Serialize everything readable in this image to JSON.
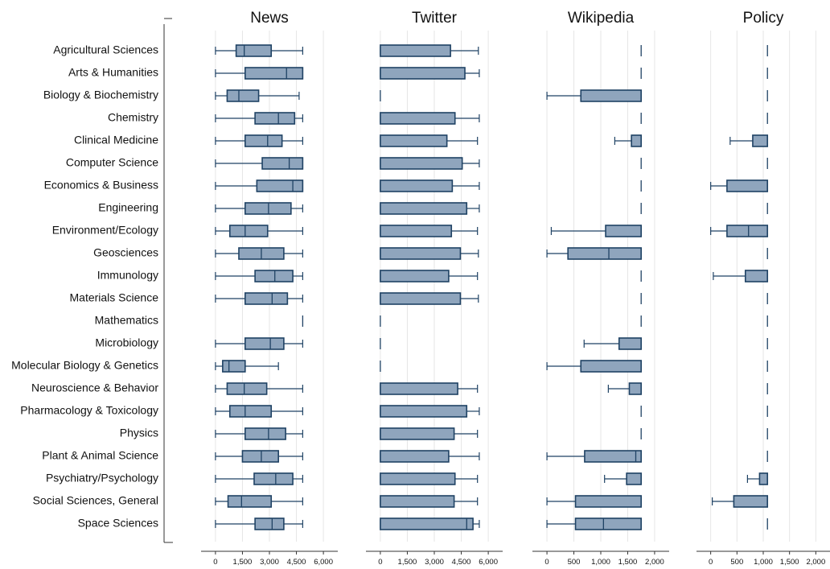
{
  "chart_data": {
    "type": "box",
    "categories": [
      "Agricultural Sciences",
      "Arts & Humanities",
      "Biology & Biochemistry",
      "Chemistry",
      "Clinical Medicine",
      "Computer Science",
      "Economics & Business",
      "Engineering",
      "Environment/Ecology",
      "Geosciences",
      "Immunology",
      "Materials Science",
      "Mathematics",
      "Microbiology",
      "Molecular Biology & Genetics",
      "Neuroscience & Behavior",
      "Pharmacology & Toxicology",
      "Physics",
      "Plant & Animal Science",
      "Psychiatry/Psychology",
      "Social Sciences, General",
      "Space Sciences"
    ],
    "style": {
      "box_fill": "#8fa5bd",
      "box_stroke": "#1f4264",
      "grid": "#e6e6e6",
      "axis": "#333333"
    },
    "panels": [
      {
        "title": "News",
        "xlim": [
          -800,
          6800
        ],
        "ticks": [
          0,
          1500,
          3000,
          4500,
          6000
        ],
        "tick_labels": [
          "0",
          "1,500",
          "3,000",
          "4,500",
          "6,000"
        ],
        "boxes": [
          [
            0,
            1150,
            1600,
            3100,
            4850
          ],
          [
            0,
            1650,
            3950,
            4850,
            4850
          ],
          [
            0,
            650,
            1300,
            2400,
            4650
          ],
          [
            0,
            2200,
            3500,
            4400,
            4850
          ],
          [
            0,
            1650,
            2900,
            3700,
            4850
          ],
          [
            0,
            2600,
            4100,
            4850,
            4850
          ],
          [
            0,
            2300,
            4300,
            4850,
            4850
          ],
          [
            0,
            1650,
            2950,
            4200,
            4850
          ],
          [
            0,
            800,
            1650,
            2900,
            4850
          ],
          [
            0,
            1300,
            2550,
            3800,
            4850
          ],
          [
            0,
            2200,
            3300,
            4300,
            4850
          ],
          [
            0,
            1650,
            3150,
            4000,
            4850
          ],
          [
            4850,
            4850,
            4850,
            4850,
            4850
          ],
          [
            0,
            1650,
            3050,
            3800,
            4850
          ],
          [
            0,
            400,
            750,
            1650,
            3500
          ],
          [
            0,
            650,
            1600,
            2850,
            4850
          ],
          [
            0,
            800,
            1650,
            3100,
            4850
          ],
          [
            0,
            1650,
            2950,
            3900,
            4850
          ],
          [
            0,
            1500,
            2550,
            3500,
            4850
          ],
          [
            0,
            2150,
            3350,
            4300,
            4850
          ],
          [
            0,
            700,
            1450,
            3100,
            4850
          ],
          [
            0,
            2200,
            3150,
            3800,
            4850
          ]
        ]
      },
      {
        "title": "Twitter",
        "xlim": [
          -800,
          6800
        ],
        "ticks": [
          0,
          1500,
          3000,
          4500,
          6000
        ],
        "tick_labels": [
          "0",
          "1,500",
          "3,000",
          "4,500",
          "6,000"
        ],
        "boxes": [
          [
            0,
            0,
            0,
            3900,
            5450
          ],
          [
            0,
            0,
            0,
            4700,
            5500
          ],
          [
            0,
            0,
            0,
            0,
            0
          ],
          [
            0,
            0,
            0,
            4150,
            5500
          ],
          [
            0,
            0,
            0,
            3700,
            5400
          ],
          [
            0,
            0,
            0,
            4550,
            5500
          ],
          [
            0,
            0,
            0,
            4000,
            5500
          ],
          [
            0,
            0,
            0,
            4800,
            5500
          ],
          [
            0,
            0,
            0,
            3950,
            5400
          ],
          [
            0,
            0,
            0,
            4450,
            5450
          ],
          [
            0,
            0,
            0,
            3800,
            5400
          ],
          [
            0,
            0,
            0,
            4450,
            5450
          ],
          [
            0,
            0,
            0,
            0,
            0
          ],
          [
            0,
            0,
            0,
            0,
            0
          ],
          [
            0,
            0,
            0,
            0,
            0
          ],
          [
            0,
            0,
            0,
            4300,
            5400
          ],
          [
            0,
            0,
            0,
            4800,
            5500
          ],
          [
            0,
            0,
            0,
            4100,
            5400
          ],
          [
            0,
            0,
            0,
            3800,
            5500
          ],
          [
            0,
            0,
            0,
            4150,
            5400
          ],
          [
            0,
            0,
            0,
            4100,
            5400
          ],
          [
            0,
            0,
            4800,
            5150,
            5500
          ]
        ]
      },
      {
        "title": "Wikipedia",
        "xlim": [
          -270,
          2270
        ],
        "ticks": [
          0,
          500,
          1000,
          1500,
          2000
        ],
        "tick_labels": [
          "0",
          "500",
          "1,000",
          "1,500",
          "2,000"
        ],
        "boxes": [
          [
            1750,
            1750,
            1750,
            1750,
            1750
          ],
          [
            1750,
            1750,
            1750,
            1750,
            1750
          ],
          [
            0,
            630,
            1750,
            1750,
            1750
          ],
          [
            1750,
            1750,
            1750,
            1750,
            1750
          ],
          [
            1260,
            1570,
            1750,
            1750,
            1750
          ],
          [
            1750,
            1750,
            1750,
            1750,
            1750
          ],
          [
            1750,
            1750,
            1750,
            1750,
            1750
          ],
          [
            1750,
            1750,
            1750,
            1750,
            1750
          ],
          [
            80,
            1090,
            1750,
            1750,
            1750
          ],
          [
            0,
            390,
            1150,
            1750,
            1750
          ],
          [
            1750,
            1750,
            1750,
            1750,
            1750
          ],
          [
            1750,
            1750,
            1750,
            1750,
            1750
          ],
          [
            1750,
            1750,
            1750,
            1750,
            1750
          ],
          [
            690,
            1340,
            1750,
            1750,
            1750
          ],
          [
            0,
            630,
            1750,
            1750,
            1750
          ],
          [
            1140,
            1530,
            1750,
            1750,
            1750
          ],
          [
            1750,
            1750,
            1750,
            1750,
            1750
          ],
          [
            1750,
            1750,
            1750,
            1750,
            1750
          ],
          [
            0,
            700,
            1650,
            1750,
            1750
          ],
          [
            1070,
            1480,
            1750,
            1750,
            1750
          ],
          [
            0,
            530,
            1750,
            1750,
            1750
          ],
          [
            0,
            530,
            1050,
            1750,
            1750
          ]
        ]
      },
      {
        "title": "Policy",
        "xlim": [
          -270,
          2270
        ],
        "ticks": [
          0,
          500,
          1000,
          1500,
          2000
        ],
        "tick_labels": [
          "0",
          "500",
          "1,000",
          "1,500",
          "2,000"
        ],
        "boxes": [
          [
            1080,
            1080,
            1080,
            1080,
            1080
          ],
          [
            1080,
            1080,
            1080,
            1080,
            1080
          ],
          [
            1080,
            1080,
            1080,
            1080,
            1080
          ],
          [
            1080,
            1080,
            1080,
            1080,
            1080
          ],
          [
            370,
            800,
            1080,
            1080,
            1080
          ],
          [
            1080,
            1080,
            1080,
            1080,
            1080
          ],
          [
            0,
            310,
            1080,
            1080,
            1080
          ],
          [
            1080,
            1080,
            1080,
            1080,
            1080
          ],
          [
            0,
            310,
            720,
            1080,
            1080
          ],
          [
            1080,
            1080,
            1080,
            1080,
            1080
          ],
          [
            50,
            660,
            1080,
            1080,
            1080
          ],
          [
            1080,
            1080,
            1080,
            1080,
            1080
          ],
          [
            1080,
            1080,
            1080,
            1080,
            1080
          ],
          [
            1080,
            1080,
            1080,
            1080,
            1080
          ],
          [
            1080,
            1080,
            1080,
            1080,
            1080
          ],
          [
            1080,
            1080,
            1080,
            1080,
            1080
          ],
          [
            1080,
            1080,
            1080,
            1080,
            1080
          ],
          [
            1080,
            1080,
            1080,
            1080,
            1080
          ],
          [
            1080,
            1080,
            1080,
            1080,
            1080
          ],
          [
            700,
            930,
            1080,
            1080,
            1080
          ],
          [
            30,
            440,
            1080,
            1080,
            1080
          ],
          [
            1080,
            1080,
            1080,
            1080,
            1080
          ]
        ]
      }
    ]
  }
}
